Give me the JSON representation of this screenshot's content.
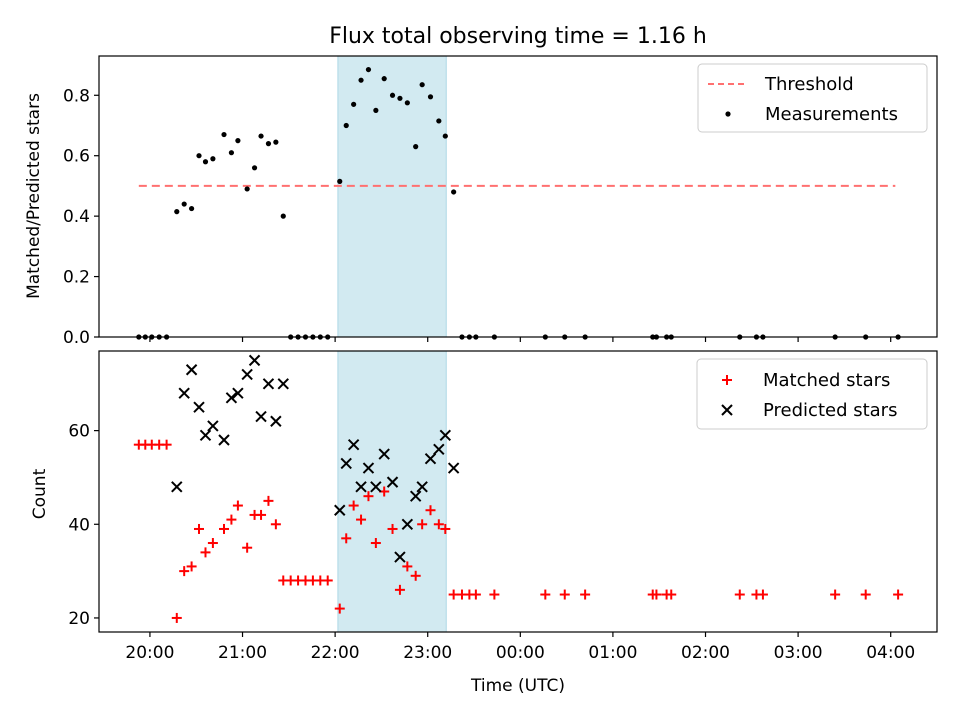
{
  "title": "Flux total observing time = 1.16 h",
  "colors": {
    "threshold": "#ff7070",
    "measurements": "#000000",
    "matched": "#ff0000",
    "predicted": "#000000",
    "band": "#add8e6"
  },
  "chart_data": [
    {
      "type": "scatter",
      "panel": "top",
      "ylabel": "Matched/Predicted stars",
      "xlabel": "",
      "x_unit": "hours since 20:00 UTC",
      "xlim": [
        -0.55,
        8.5
      ],
      "ylim": [
        0,
        0.93
      ],
      "yticks": [
        0.0,
        0.2,
        0.4,
        0.6,
        0.8
      ],
      "ytick_labels": [
        "0.0",
        "0.2",
        "0.4",
        "0.6",
        "0.8"
      ],
      "band_hours": [
        2.03,
        3.2
      ],
      "legend_position": "upper right",
      "threshold": {
        "name": "Threshold",
        "value": 0.5,
        "x_range": [
          -0.12,
          8.05
        ]
      },
      "series": [
        {
          "name": "Measurements",
          "marker": "dot",
          "points": [
            [
              -0.12,
              0
            ],
            [
              -0.05,
              0
            ],
            [
              0.02,
              0
            ],
            [
              0.1,
              0
            ],
            [
              0.18,
              0
            ],
            [
              0.29,
              0.415
            ],
            [
              0.37,
              0.44
            ],
            [
              0.45,
              0.425
            ],
            [
              0.53,
              0.6
            ],
            [
              0.6,
              0.58
            ],
            [
              0.68,
              0.59
            ],
            [
              0.8,
              0.67
            ],
            [
              0.88,
              0.61
            ],
            [
              0.95,
              0.65
            ],
            [
              1.05,
              0.49
            ],
            [
              1.13,
              0.56
            ],
            [
              1.2,
              0.665
            ],
            [
              1.28,
              0.64
            ],
            [
              1.36,
              0.645
            ],
            [
              1.44,
              0.4
            ],
            [
              1.52,
              0
            ],
            [
              1.6,
              0
            ],
            [
              1.68,
              0
            ],
            [
              1.76,
              0
            ],
            [
              1.84,
              0
            ],
            [
              1.92,
              0
            ],
            [
              2.05,
              0.515
            ],
            [
              2.12,
              0.7
            ],
            [
              2.2,
              0.77
            ],
            [
              2.28,
              0.85
            ],
            [
              2.36,
              0.885
            ],
            [
              2.44,
              0.75
            ],
            [
              2.53,
              0.855
            ],
            [
              2.62,
              0.8
            ],
            [
              2.7,
              0.79
            ],
            [
              2.78,
              0.775
            ],
            [
              2.87,
              0.63
            ],
            [
              2.94,
              0.835
            ],
            [
              3.03,
              0.795
            ],
            [
              3.12,
              0.715
            ],
            [
              3.19,
              0.665
            ],
            [
              3.28,
              0.48
            ],
            [
              3.37,
              0
            ],
            [
              3.45,
              0
            ],
            [
              3.52,
              0
            ],
            [
              3.72,
              0
            ],
            [
              4.27,
              0
            ],
            [
              4.48,
              0
            ],
            [
              4.7,
              0
            ],
            [
              5.43,
              0
            ],
            [
              5.47,
              0
            ],
            [
              5.58,
              0
            ],
            [
              5.63,
              0
            ],
            [
              6.37,
              0
            ],
            [
              6.55,
              0
            ],
            [
              6.62,
              0
            ],
            [
              7.4,
              0
            ],
            [
              7.73,
              0
            ],
            [
              8.08,
              0
            ]
          ]
        }
      ]
    },
    {
      "type": "scatter",
      "panel": "bottom",
      "ylabel": "Count",
      "xlabel": "Time (UTC)",
      "x_unit": "hours since 20:00 UTC",
      "xlim": [
        -0.55,
        8.5
      ],
      "ylim": [
        17,
        77
      ],
      "yticks": [
        20,
        40,
        60
      ],
      "ytick_labels": [
        "20",
        "40",
        "60"
      ],
      "xticks": [
        0,
        1,
        2,
        3,
        4,
        5,
        6,
        7,
        8
      ],
      "xtick_labels": [
        "20:00",
        "21:00",
        "22:00",
        "23:00",
        "00:00",
        "01:00",
        "02:00",
        "03:00",
        "04:00"
      ],
      "band_hours": [
        2.03,
        3.2
      ],
      "legend_position": "upper right",
      "series": [
        {
          "name": "Matched stars",
          "marker": "plus",
          "points": [
            [
              -0.12,
              57
            ],
            [
              -0.05,
              57
            ],
            [
              0.02,
              57
            ],
            [
              0.1,
              57
            ],
            [
              0.18,
              57
            ],
            [
              0.29,
              20
            ],
            [
              0.37,
              30
            ],
            [
              0.45,
              31
            ],
            [
              0.53,
              39
            ],
            [
              0.6,
              34
            ],
            [
              0.68,
              36
            ],
            [
              0.8,
              39
            ],
            [
              0.88,
              41
            ],
            [
              0.95,
              44
            ],
            [
              1.05,
              35
            ],
            [
              1.13,
              42
            ],
            [
              1.2,
              42
            ],
            [
              1.28,
              45
            ],
            [
              1.36,
              40
            ],
            [
              1.44,
              28
            ],
            [
              1.52,
              28
            ],
            [
              1.6,
              28
            ],
            [
              1.68,
              28
            ],
            [
              1.76,
              28
            ],
            [
              1.84,
              28
            ],
            [
              1.92,
              28
            ],
            [
              2.05,
              22
            ],
            [
              2.12,
              37
            ],
            [
              2.2,
              44
            ],
            [
              2.28,
              41
            ],
            [
              2.36,
              46
            ],
            [
              2.44,
              36
            ],
            [
              2.53,
              47
            ],
            [
              2.62,
              39
            ],
            [
              2.7,
              26
            ],
            [
              2.78,
              31
            ],
            [
              2.87,
              29
            ],
            [
              2.94,
              40
            ],
            [
              3.03,
              43
            ],
            [
              3.12,
              40
            ],
            [
              3.19,
              39
            ],
            [
              3.28,
              25
            ],
            [
              3.37,
              25
            ],
            [
              3.45,
              25
            ],
            [
              3.52,
              25
            ],
            [
              3.72,
              25
            ],
            [
              4.27,
              25
            ],
            [
              4.48,
              25
            ],
            [
              4.7,
              25
            ],
            [
              5.43,
              25
            ],
            [
              5.47,
              25
            ],
            [
              5.58,
              25
            ],
            [
              5.63,
              25
            ],
            [
              6.37,
              25
            ],
            [
              6.55,
              25
            ],
            [
              6.62,
              25
            ],
            [
              7.4,
              25
            ],
            [
              7.73,
              25
            ],
            [
              8.08,
              25
            ]
          ]
        },
        {
          "name": "Predicted stars",
          "marker": "x",
          "points": [
            [
              0.29,
              48
            ],
            [
              0.37,
              68
            ],
            [
              0.45,
              73
            ],
            [
              0.53,
              65
            ],
            [
              0.6,
              59
            ],
            [
              0.68,
              61
            ],
            [
              0.8,
              58
            ],
            [
              0.88,
              67
            ],
            [
              0.95,
              68
            ],
            [
              1.05,
              72
            ],
            [
              1.13,
              75
            ],
            [
              1.2,
              63
            ],
            [
              1.28,
              70
            ],
            [
              1.36,
              62
            ],
            [
              1.44,
              70
            ],
            [
              2.05,
              43
            ],
            [
              2.12,
              53
            ],
            [
              2.2,
              57
            ],
            [
              2.28,
              48
            ],
            [
              2.36,
              52
            ],
            [
              2.44,
              48
            ],
            [
              2.53,
              55
            ],
            [
              2.62,
              49
            ],
            [
              2.7,
              33
            ],
            [
              2.78,
              40
            ],
            [
              2.87,
              46
            ],
            [
              2.94,
              48
            ],
            [
              3.03,
              54
            ],
            [
              3.12,
              56
            ],
            [
              3.19,
              59
            ],
            [
              3.28,
              52
            ]
          ]
        }
      ]
    }
  ]
}
